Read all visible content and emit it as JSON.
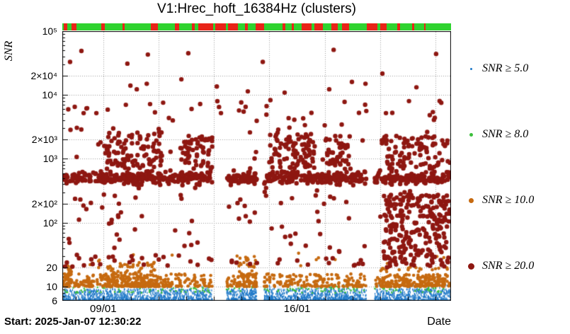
{
  "footer": {
    "start": "Start: 2025-Jan-07 12:30:22"
  },
  "colors": {
    "frame": "#000000",
    "grid": "#9a9a9a",
    "strip_green": "#2fd32f",
    "strip_red": "#e82418"
  },
  "chart_data": {
    "type": "scatter",
    "title": "V1:Hrec_hoft_16384Hz (clusters)",
    "xlabel": "Date",
    "ylabel": "SNR",
    "x_axis": {
      "unit": "days since start shown in footer",
      "lim": [
        0,
        14.04
      ],
      "ticks": [
        {
          "day": 1.479,
          "label": "09/01"
        },
        {
          "day": 8.479,
          "label": "16/01"
        }
      ],
      "gridline_days": [
        1.479,
        3.479,
        5.479,
        7.479,
        9.479,
        11.479,
        13.479
      ],
      "day_tick_start": 0.479
    },
    "y_axis": {
      "scale": "log",
      "lim": [
        6,
        100000
      ],
      "ticks": [
        {
          "v": 100000,
          "label": "10⁵"
        },
        {
          "v": 20000,
          "label": "2×10⁴"
        },
        {
          "v": 10000,
          "label": "10⁴"
        },
        {
          "v": 2000,
          "label": "2×10³"
        },
        {
          "v": 1000,
          "label": "10³"
        },
        {
          "v": 200,
          "label": "2×10²"
        },
        {
          "v": 100,
          "label": "10²"
        },
        {
          "v": 20,
          "label": "20"
        },
        {
          "v": 10,
          "label": "10"
        },
        {
          "v": 6,
          "label": "6"
        }
      ]
    },
    "gaps": [
      [
        5.42,
        5.93
      ],
      [
        7.03,
        7.29
      ],
      [
        10.98,
        11.28
      ]
    ],
    "status_strip": {
      "description": "data-quality strip: green = good, red = bad segments (fractions of x-range)",
      "red_segments": [
        [
          0.004,
          0.012
        ],
        [
          0.023,
          0.037
        ],
        [
          0.1,
          0.11
        ],
        [
          0.155,
          0.161
        ],
        [
          0.228,
          0.245
        ],
        [
          0.289,
          0.3
        ],
        [
          0.333,
          0.34
        ],
        [
          0.35,
          0.388
        ],
        [
          0.393,
          0.42
        ],
        [
          0.427,
          0.452
        ],
        [
          0.47,
          0.478
        ],
        [
          0.497,
          0.519
        ],
        [
          0.566,
          0.574
        ],
        [
          0.59,
          0.596
        ],
        [
          0.616,
          0.642
        ],
        [
          0.649,
          0.671
        ],
        [
          0.693,
          0.708
        ],
        [
          0.719,
          0.737
        ],
        [
          0.784,
          0.81
        ],
        [
          0.817,
          0.834
        ],
        [
          0.861,
          0.868
        ],
        [
          0.9,
          0.906
        ],
        [
          0.93,
          0.935
        ]
      ]
    },
    "series": [
      {
        "id": "snr5",
        "name": "SNR ≥ 5.0",
        "color": "#1e78c8",
        "marker": "vbar",
        "marker_r": 1.1,
        "legend_marker_px": 3,
        "components": [
          {
            "x": [
              0.03,
              14.0
            ],
            "logy": [
              0.778,
              0.96
            ],
            "n": 2800,
            "dist": "low"
          },
          {
            "x": [
              0.03,
              14.0
            ],
            "logy": [
              0.9,
              1.03
            ],
            "n": 150,
            "dist": "uniform"
          }
        ]
      },
      {
        "id": "snr8",
        "name": "SNR ≥ 8.0",
        "color": "#3cbf3c",
        "marker": "circle",
        "marker_r": 1.3,
        "legend_marker_px": 5,
        "components": [
          {
            "x": [
              0.03,
              14.0
            ],
            "logy": [
              0.9,
              1.01
            ],
            "n": 170,
            "dist": "uniform"
          }
        ]
      },
      {
        "id": "snr10",
        "name": "SNR ≥ 10.0",
        "color": "#c66a10",
        "marker": "circle",
        "marker_r": 2.3,
        "legend_marker_px": 7,
        "components": [
          {
            "x": [
              0.03,
              14.0
            ],
            "logy": [
              1.0,
              1.2
            ],
            "n": 600,
            "dist": "low"
          },
          {
            "x": [
              0.03,
              0.35
            ],
            "logy": [
              1.0,
              1.33
            ],
            "n": 40,
            "dist": "uniform"
          },
          {
            "x": [
              1.55,
              3.4
            ],
            "logy": [
              1.0,
              1.38
            ],
            "n": 170,
            "dist": "low"
          },
          {
            "x": [
              6.3,
              7.05
            ],
            "logy": [
              1.0,
              1.5
            ],
            "n": 80,
            "dist": "low"
          },
          {
            "x": [
              11.5,
              14.0
            ],
            "logy": [
              1.0,
              1.3
            ],
            "n": 130,
            "dist": "low"
          },
          {
            "x": [
              0.03,
              14.0
            ],
            "logy": [
              1.28,
              1.55
            ],
            "n": 22,
            "dist": "uniform"
          }
        ]
      },
      {
        "id": "snr20",
        "name": "SNR ≥ 20.0",
        "color": "#8e1711",
        "marker": "circle",
        "marker_r": 3.2,
        "legend_marker_px": 9,
        "components": [
          {
            "x": [
              0.03,
              14.0
            ],
            "logy": [
              2.58,
              2.82
            ],
            "n": 650,
            "dist": "center"
          },
          {
            "x": [
              1.55,
              3.6
            ],
            "logy": [
              2.84,
              3.42
            ],
            "n": 90,
            "dist": "uniform"
          },
          {
            "x": [
              4.3,
              5.42
            ],
            "logy": [
              2.84,
              3.36
            ],
            "n": 60,
            "dist": "uniform"
          },
          {
            "x": [
              7.4,
              9.1
            ],
            "logy": [
              2.84,
              3.42
            ],
            "n": 85,
            "dist": "uniform"
          },
          {
            "x": [
              9.5,
              10.4
            ],
            "logy": [
              2.84,
              3.36
            ],
            "n": 45,
            "dist": "uniform"
          },
          {
            "x": [
              11.5,
              14.0
            ],
            "logy": [
              2.84,
              3.36
            ],
            "n": 95,
            "dist": "uniform"
          },
          {
            "x": [
              0.03,
              14.0
            ],
            "logy": [
              2.82,
              3.3
            ],
            "n": 40,
            "dist": "uniform"
          },
          {
            "x": [
              0.03,
              14.0
            ],
            "logy": [
              1.45,
              2.55
            ],
            "n": 90,
            "dist": "uniform"
          },
          {
            "x": [
              11.6,
              14.0
            ],
            "logy": [
              1.9,
              2.45
            ],
            "n": 130,
            "dist": "uniform"
          },
          {
            "x": [
              11.6,
              14.0
            ],
            "logy": [
              1.3,
              1.9
            ],
            "n": 110,
            "dist": "uniform"
          },
          {
            "x": [
              0.03,
              14.0
            ],
            "logy": [
              1.3,
              1.48
            ],
            "n": 45,
            "dist": "uniform"
          },
          {
            "x": [
              0.03,
              14.0
            ],
            "logy": [
              3.4,
              3.95
            ],
            "n": 45,
            "dist": "uniform"
          }
        ],
        "outliers": [
          [
            0.28,
            33000
          ],
          [
            0.69,
            49000
          ],
          [
            0.77,
            5200
          ],
          [
            1.23,
            5200
          ],
          [
            1.64,
            5900
          ],
          [
            2.35,
            31000
          ],
          [
            2.46,
            14000
          ],
          [
            2.69,
            12300
          ],
          [
            3.05,
            15000
          ],
          [
            3.09,
            43000
          ],
          [
            3.17,
            7200
          ],
          [
            3.99,
            4000
          ],
          [
            4.3,
            17600
          ],
          [
            4.55,
            45000
          ],
          [
            5.58,
            13600
          ],
          [
            5.6,
            8000
          ],
          [
            5.66,
            6500
          ],
          [
            5.73,
            5200
          ],
          [
            6.55,
            5500
          ],
          [
            6.7,
            11400
          ],
          [
            7.24,
            33000
          ],
          [
            8.03,
            10900
          ],
          [
            8.7,
            4300
          ],
          [
            9.64,
            12300
          ],
          [
            9.8,
            51000
          ],
          [
            10.46,
            16000
          ],
          [
            10.95,
            15000
          ],
          [
            11.56,
            21600
          ],
          [
            11.69,
            5200
          ],
          [
            12.79,
            13200
          ],
          [
            13.5,
            44000
          ]
        ]
      }
    ]
  }
}
